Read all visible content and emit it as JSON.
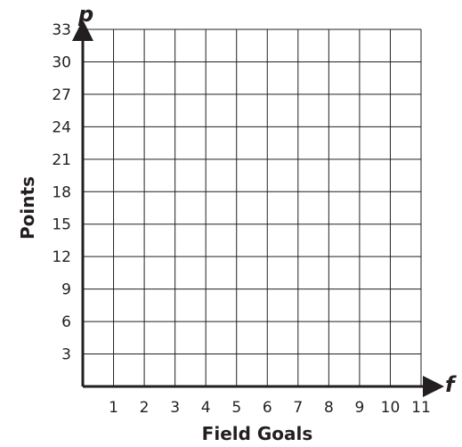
{
  "chart_data": {
    "type": "scatter",
    "xlabel": "Field Goals",
    "ylabel": "Points",
    "x_variable": "f",
    "y_variable": "p",
    "xlim": [
      0,
      11
    ],
    "ylim": [
      0,
      33
    ],
    "x_ticks": [
      1,
      2,
      3,
      4,
      5,
      6,
      7,
      8,
      9,
      10,
      11
    ],
    "y_ticks": [
      3,
      6,
      9,
      12,
      15,
      18,
      21,
      24,
      27,
      30,
      33
    ],
    "grid": true,
    "x": [],
    "y": []
  }
}
